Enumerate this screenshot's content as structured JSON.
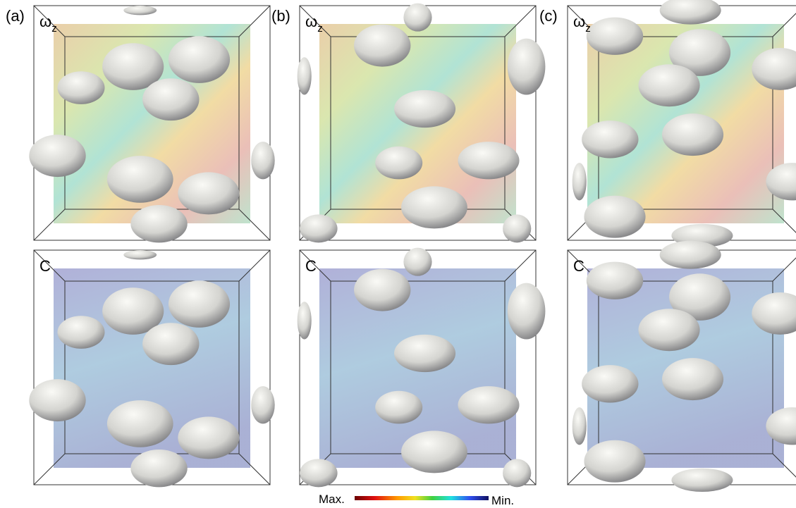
{
  "panels": [
    {
      "label": "(a)",
      "rows": [
        {
          "field": "ω",
          "subscript": "z"
        },
        {
          "field": "C"
        }
      ]
    },
    {
      "label": "(b)",
      "rows": [
        {
          "field": "ω",
          "subscript": "z"
        },
        {
          "field": "C"
        }
      ]
    },
    {
      "label": "(c)",
      "rows": [
        {
          "field": "ω",
          "subscript": "z"
        },
        {
          "field": "C"
        }
      ]
    }
  ],
  "colorbar": {
    "max_label": "Max.",
    "min_label": "Min."
  }
}
